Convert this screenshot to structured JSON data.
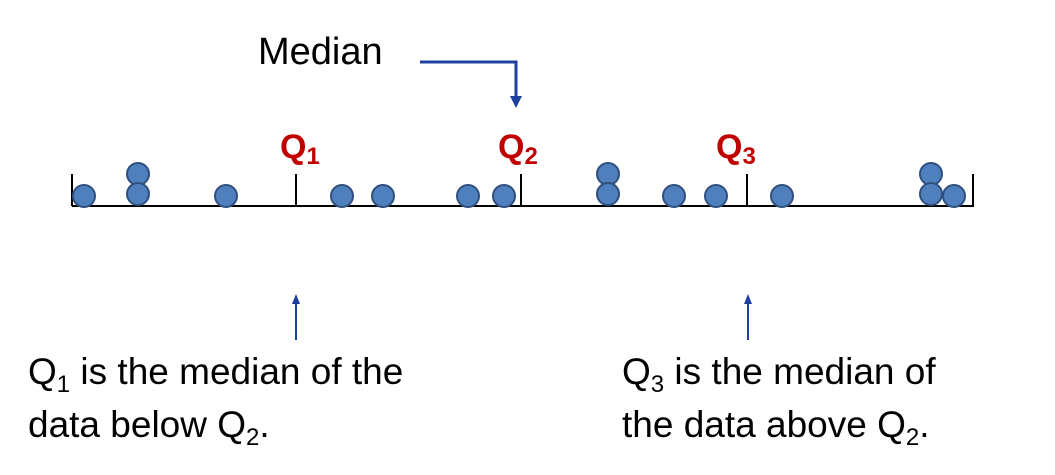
{
  "colors": {
    "dot_fill": "#4f80bd",
    "dot_stroke": "#2f4f7f",
    "quartile_label": "#c00000",
    "arrow": "#1f3f9f",
    "axis": "#000000"
  },
  "median_label": "Median",
  "quartiles": [
    {
      "letter": "Q",
      "sub": "1"
    },
    {
      "letter": "Q",
      "sub": "2"
    },
    {
      "letter": "Q",
      "sub": "3"
    }
  ],
  "captions": {
    "left": {
      "line1": {
        "before": "Q",
        "sub": "1",
        "after": " is the median of the"
      },
      "line2": {
        "before": "data below Q",
        "sub": "2",
        "after": "."
      }
    },
    "right": {
      "line1": {
        "before": "Q",
        "sub": "3",
        "after": " is the median of"
      },
      "line2": {
        "before": "the data above Q",
        "sub": "2",
        "after": "."
      }
    }
  },
  "data_points": {
    "count": 17,
    "marks": "dots"
  },
  "icons": [
    "down-arrow-icon",
    "up-arrow-icon"
  ]
}
